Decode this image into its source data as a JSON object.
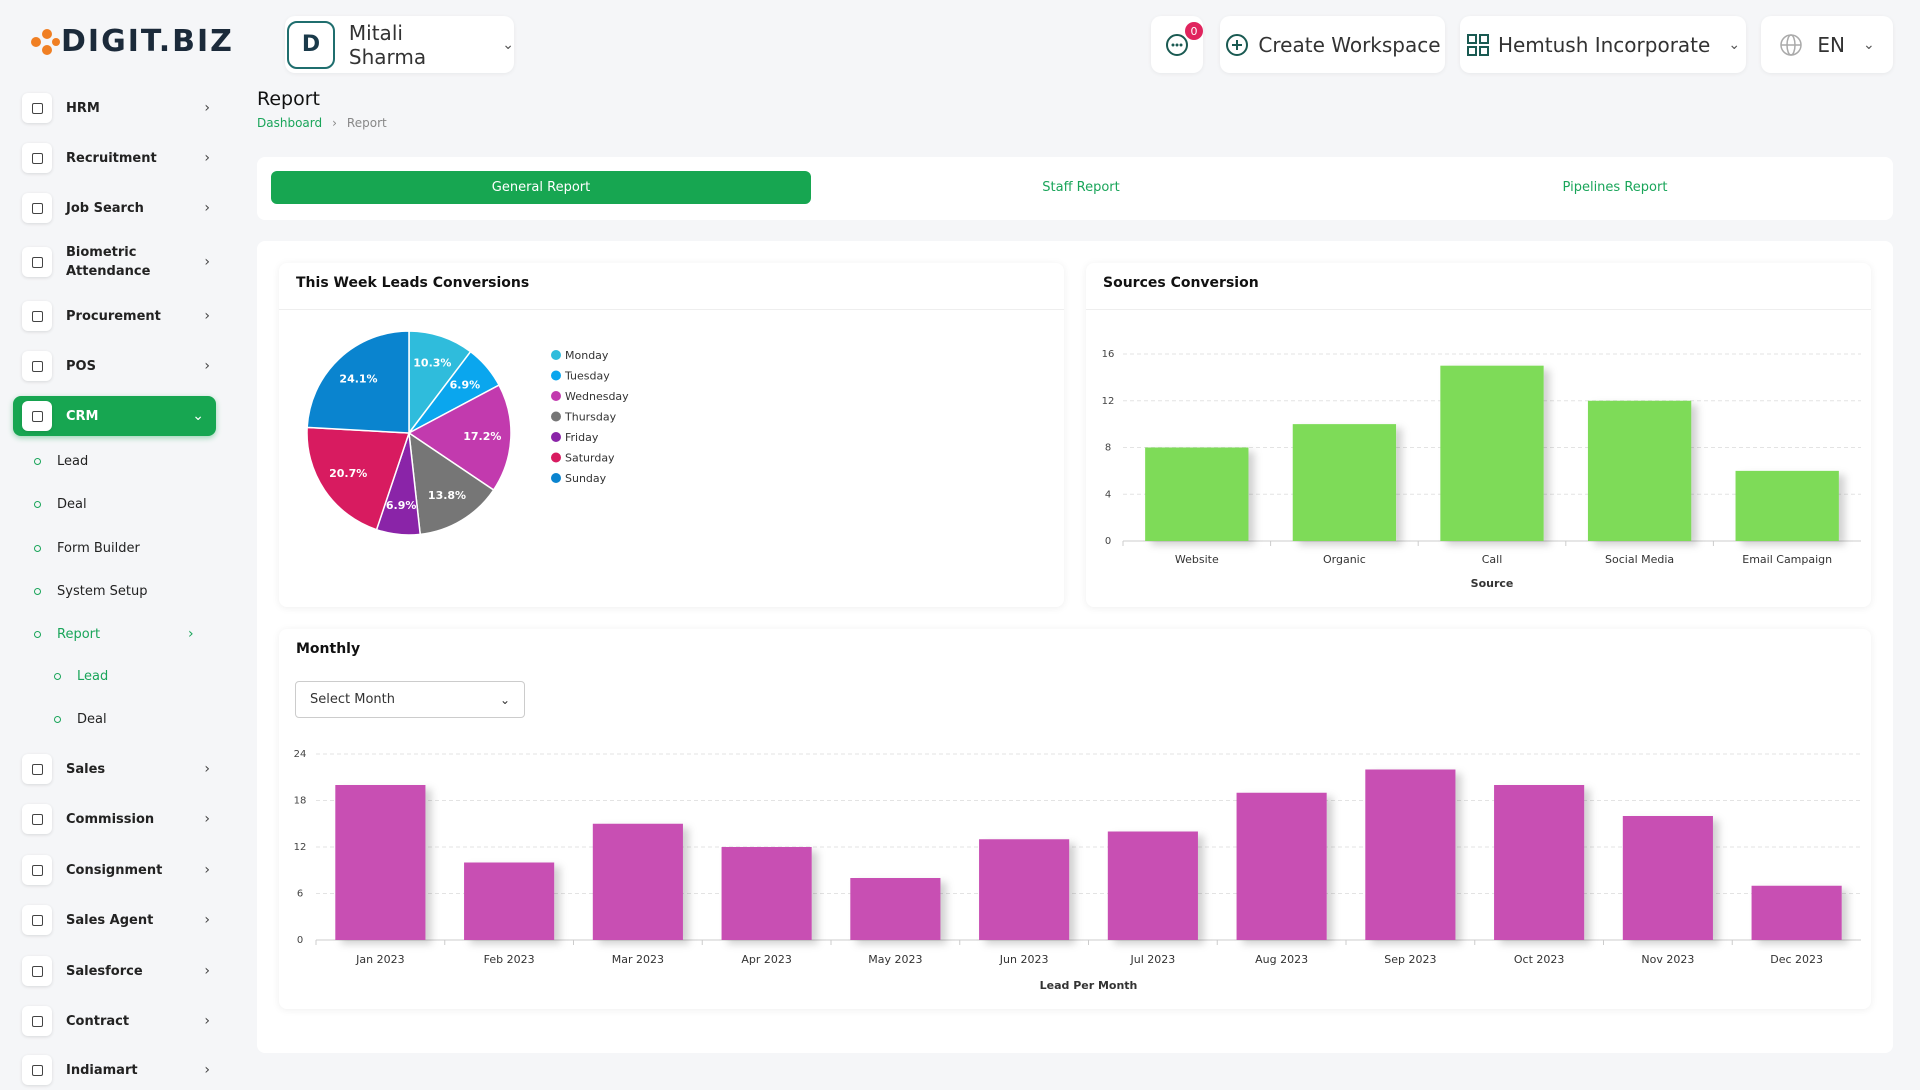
{
  "header": {
    "logo": "DIGIT.BIZ",
    "user": "Mitali Sharma",
    "notifications": 0,
    "create_workspace": "Create Workspace",
    "workspace": "Hemtush Incorporate",
    "language": "EN"
  },
  "sidebar": {
    "items_top": [
      "HRM",
      "Recruitment",
      "Job Search",
      "Biometric Attendance",
      "Procurement",
      "POS",
      "CRM"
    ],
    "crm_items": [
      "Lead",
      "Deal",
      "Form Builder",
      "System Setup",
      "Report"
    ],
    "report_items": [
      "Lead",
      "Deal"
    ],
    "items_bottom": [
      "Sales",
      "Commission",
      "Consignment",
      "Sales Agent",
      "Salesforce",
      "Contract",
      "Indiamart"
    ]
  },
  "page": {
    "title": "Report",
    "breadcrumb": [
      "Dashboard",
      "Report"
    ],
    "tabs": [
      "General Report",
      "Staff Report",
      "Pipelines Report"
    ]
  },
  "filters": {
    "month": "Select Month"
  },
  "chart_data": [
    {
      "type": "pie",
      "title": "This Week Leads Conversions",
      "categories": [
        "Monday",
        "Tuesday",
        "Wednesday",
        "Thursday",
        "Friday",
        "Saturday",
        "Sunday"
      ],
      "values": [
        10.3,
        6.9,
        17.2,
        13.8,
        6.9,
        20.7,
        24.1
      ],
      "value_labels": [
        "10.3%",
        "6.9%",
        "17.2%",
        "13.8%",
        "6.9%",
        "20.7%",
        "24.1%"
      ],
      "colors": [
        "#2fbcdc",
        "#0aa6ee",
        "#c23aae",
        "#767676",
        "#8a24a8",
        "#d81b60",
        "#0a84cf"
      ],
      "legend": "right"
    },
    {
      "type": "bar",
      "title": "Sources Conversion",
      "categories": [
        "Website",
        "Organic",
        "Call",
        "Social Media",
        "Email Campaign"
      ],
      "values": [
        8,
        10,
        15,
        12,
        6
      ],
      "color": "#7edb59",
      "xlabel": "Source",
      "ylim": [
        0,
        16
      ],
      "yticks": [
        0,
        4,
        8,
        12,
        16
      ],
      "grid": true
    },
    {
      "type": "bar",
      "title": "Monthly",
      "categories": [
        "Jan 2023",
        "Feb 2023",
        "Mar 2023",
        "Apr 2023",
        "May 2023",
        "Jun 2023",
        "Jul 2023",
        "Aug 2023",
        "Sep 2023",
        "Oct 2023",
        "Nov 2023",
        "Dec 2023"
      ],
      "values": [
        20,
        10,
        15,
        12,
        8,
        13,
        14,
        19,
        22,
        20,
        16,
        7
      ],
      "color": "#c84fb3",
      "xlabel": "Lead Per Month",
      "ylim": [
        0,
        24
      ],
      "yticks": [
        0,
        6,
        12,
        18,
        24
      ],
      "grid": true
    }
  ]
}
